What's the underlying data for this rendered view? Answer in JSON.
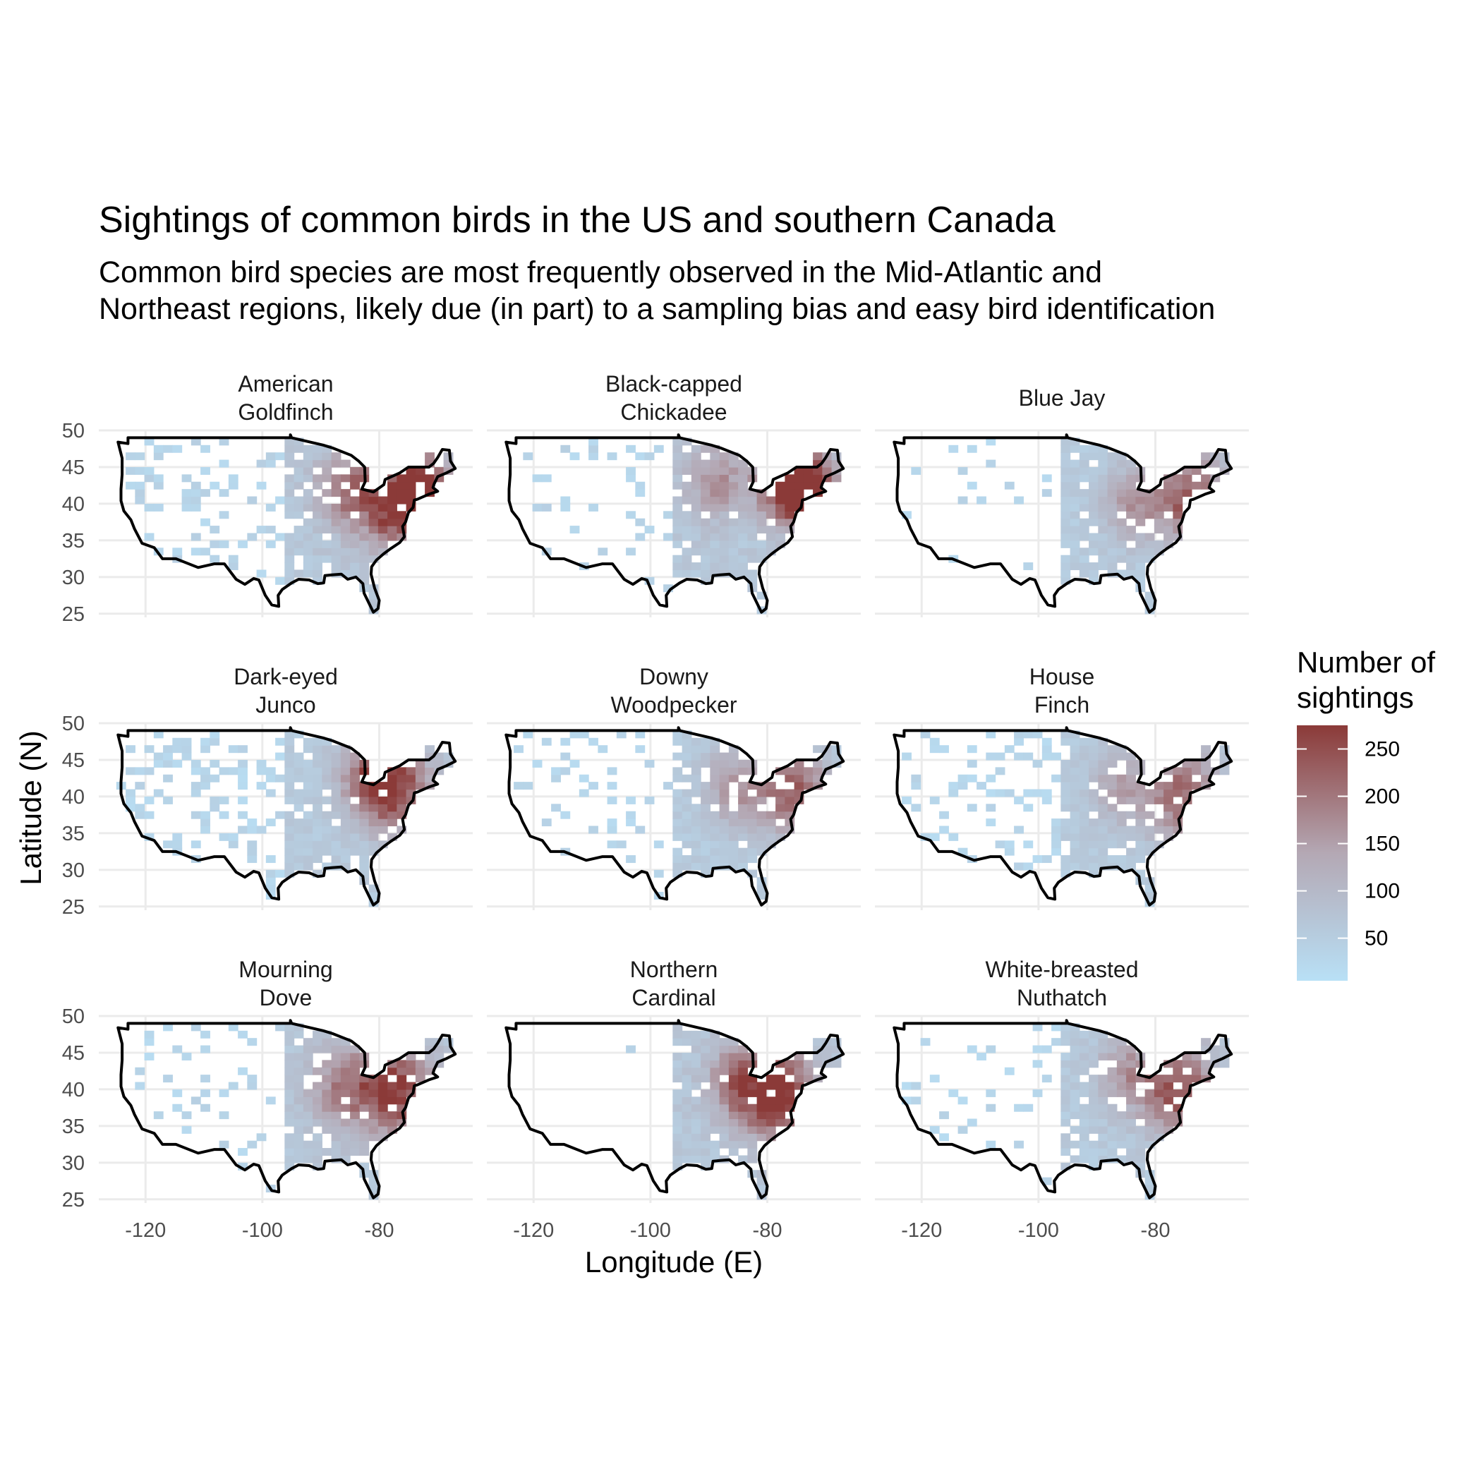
{
  "chart_data": {
    "type": "heatmap",
    "title": "Sightings of common birds in the US and southern Canada",
    "subtitle_lines": [
      "Common bird species are most frequently observed in the Mid-Atlantic and",
      "Northeast regions, likely due (in part) to a sampling bias and easy bird identification"
    ],
    "xlabel": "Longitude (E)",
    "ylabel": "Latitude (N)",
    "x_ticks": [
      -120,
      -100,
      -80
    ],
    "y_ticks": [
      25,
      30,
      35,
      40,
      45,
      50
    ],
    "xlim": [
      -128,
      -64
    ],
    "ylim": [
      24.5,
      50
    ],
    "grid": true,
    "legend": {
      "title_lines": [
        "Number of",
        "sightings"
      ],
      "ticks": [
        50,
        100,
        150,
        200,
        250
      ],
      "range": [
        5,
        275
      ],
      "color_low": "#b8e0f6",
      "color_high": "#8b3a38",
      "placement": "right"
    },
    "panels": [
      {
        "name_lines": [
          "American",
          "Goldfinch"
        ],
        "west_density": 0.22,
        "east_limit": -69,
        "intensity": 1.0,
        "hotspots": [
          [
            -77,
            40,
            6,
            1.0
          ],
          [
            -72,
            42.5,
            4,
            0.8
          ],
          [
            -86,
            42,
            5,
            0.55
          ]
        ]
      },
      {
        "name_lines": [
          "Black-capped",
          "Chickadee"
        ],
        "west_density": 0.12,
        "east_limit": -67,
        "intensity": 1.0,
        "hotspots": [
          [
            -73,
            42,
            5,
            1.0
          ],
          [
            -77,
            43,
            5,
            0.8
          ],
          [
            -89,
            43,
            5,
            0.45
          ]
        ]
      },
      {
        "name_lines": [
          "Blue Jay"
        ],
        "west_density": 0.03,
        "east_limit": -67,
        "intensity": 0.85,
        "hotspots": [
          [
            -74,
            41,
            6,
            0.9
          ],
          [
            -84,
            40,
            5,
            0.5
          ]
        ]
      },
      {
        "name_lines": [
          "Dark-eyed",
          "Junco"
        ],
        "west_density": 0.3,
        "east_limit": -69,
        "intensity": 0.9,
        "hotspots": [
          [
            -77,
            41,
            6,
            0.9
          ],
          [
            -82,
            43,
            5,
            0.6
          ]
        ]
      },
      {
        "name_lines": [
          "Downy",
          "Woodpecker"
        ],
        "west_density": 0.15,
        "east_limit": -69,
        "intensity": 0.85,
        "hotspots": [
          [
            -76,
            41,
            6,
            0.85
          ],
          [
            -86,
            41,
            5,
            0.5
          ]
        ]
      },
      {
        "name_lines": [
          "House",
          "Finch"
        ],
        "west_density": 0.22,
        "east_limit": -67,
        "intensity": 0.85,
        "hotspots": [
          [
            -75,
            40,
            6,
            0.85
          ],
          [
            -86,
            41,
            5,
            0.45
          ]
        ]
      },
      {
        "name_lines": [
          "Mourning",
          "Dove"
        ],
        "west_density": 0.12,
        "east_limit": -69,
        "intensity": 0.95,
        "hotspots": [
          [
            -77,
            40,
            6,
            0.95
          ],
          [
            -86,
            40,
            6,
            0.55
          ]
        ]
      },
      {
        "name_lines": [
          "Northern",
          "Cardinal"
        ],
        "west_density": 0.01,
        "east_limit": -67,
        "intensity": 1.0,
        "hotspots": [
          [
            -78,
            39,
            6,
            1.0
          ],
          [
            -85,
            41,
            5,
            0.6
          ]
        ]
      },
      {
        "name_lines": [
          "White-breasted",
          "Nuthatch"
        ],
        "west_density": 0.12,
        "east_limit": -67,
        "intensity": 0.9,
        "hotspots": [
          [
            -76,
            40,
            6,
            0.9
          ],
          [
            -85,
            42,
            5,
            0.45
          ]
        ]
      }
    ]
  }
}
